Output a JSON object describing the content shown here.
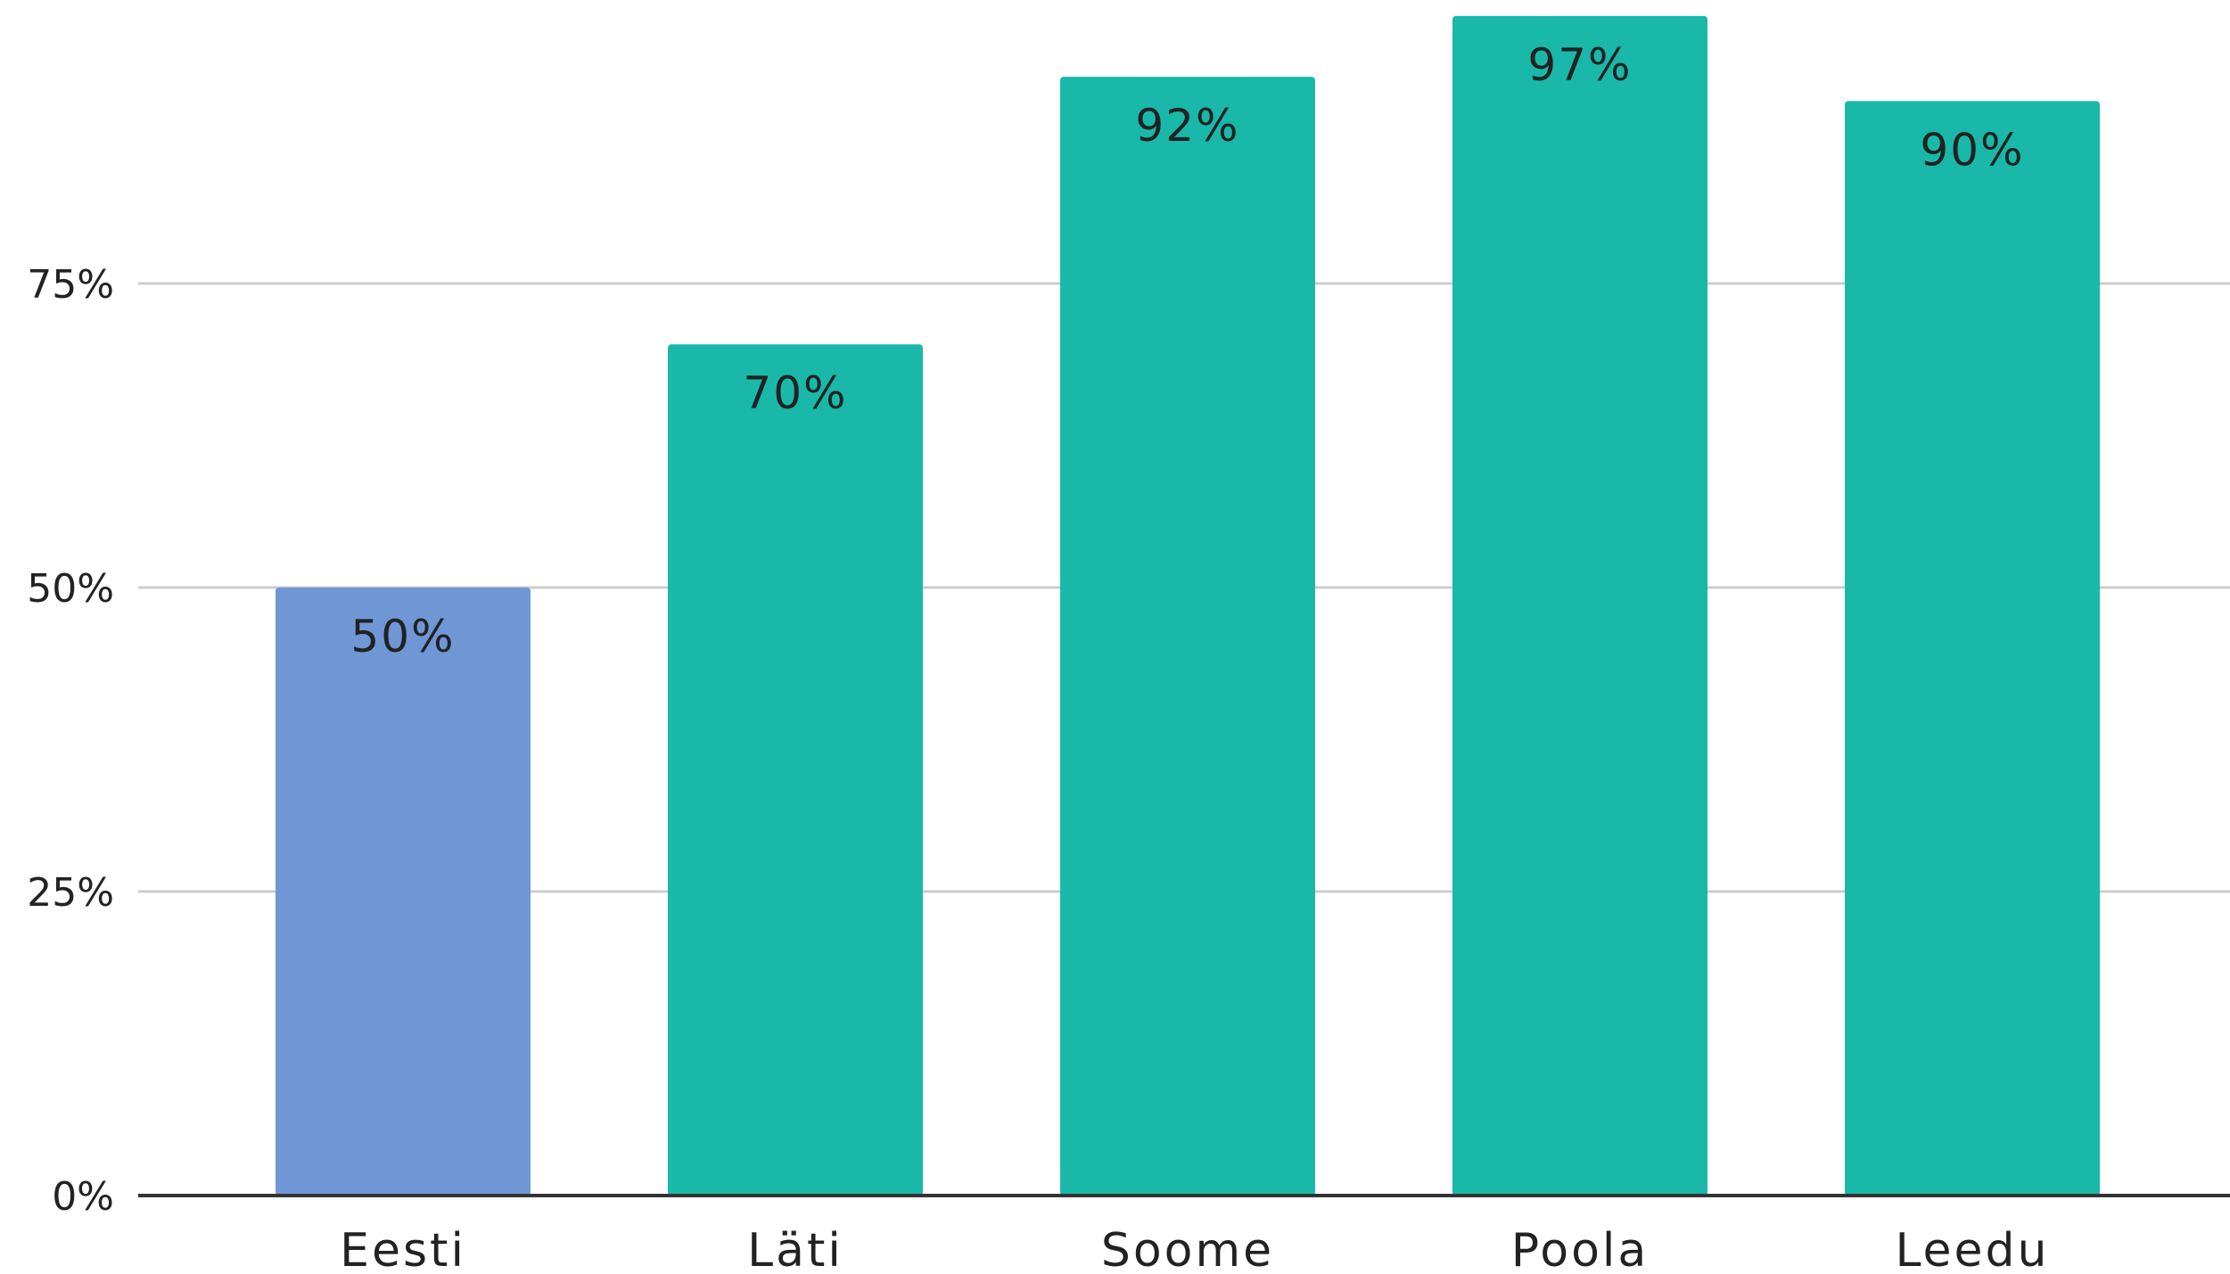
{
  "chart_data": {
    "type": "bar",
    "title": "",
    "xlabel": "",
    "ylabel": "",
    "categories": [
      "Eesti",
      "Läti",
      "Soome",
      "Poola",
      "Leedu"
    ],
    "values": [
      50,
      70,
      92,
      97,
      90
    ],
    "data_labels": [
      "50%",
      "70%",
      "92%",
      "97%",
      "90%"
    ],
    "bar_colors": [
      "#6f97d6",
      "#19b8a9",
      "#19b8a9",
      "#19b8a9",
      "#19b8a9"
    ],
    "ylim": [
      0,
      100
    ],
    "y_ticks": [
      0,
      25,
      50,
      75
    ],
    "y_tick_labels": [
      "0%",
      "25%",
      "50%",
      "75%"
    ],
    "grid": true,
    "legend": "none"
  }
}
